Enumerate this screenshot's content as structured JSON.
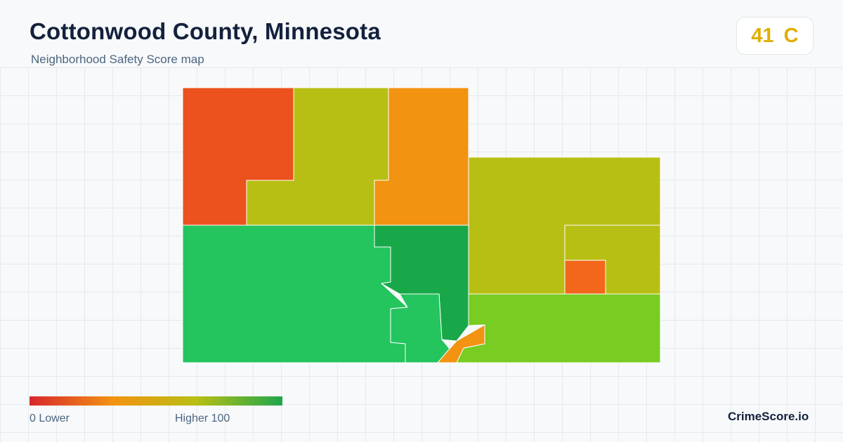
{
  "header": {
    "title": "Cottonwood County, Minnesota",
    "subtitle": "Neighborhood Safety Score map"
  },
  "score": {
    "value": "41",
    "grade": "C",
    "color": "#e0ae00"
  },
  "map": {
    "region_colors": {
      "northwest": "#ec521e",
      "north_central": "#b8bf14",
      "north_east_of_center": "#f29312",
      "east_upper": "#b8bf14",
      "east_small_block": "#b8bf14",
      "east_enclave": "#f2671c",
      "southwest": "#24c45e",
      "central_dark": "#18a84a",
      "southeast": "#78cc22",
      "south_city": "#24c45e",
      "south_city_orange": "#f29312"
    }
  },
  "legend": {
    "min_label": "0  Lower",
    "max_label": "Higher  100",
    "gradient_colors": [
      "#d7262b",
      "#f29312",
      "#b8bf14",
      "#1fa64d"
    ]
  },
  "brand": "CrimeScore.io"
}
